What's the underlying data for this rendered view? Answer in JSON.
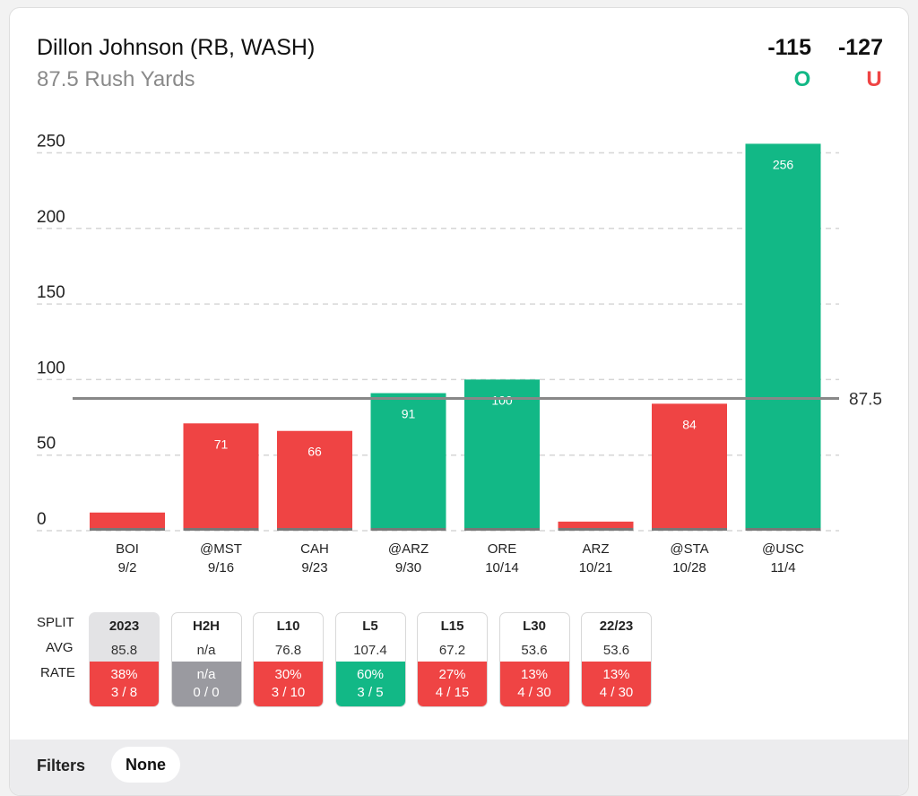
{
  "header": {
    "player": "Dillon Johnson (RB, WASH)",
    "prop": "87.5 Rush Yards",
    "over_odds": "-115",
    "under_odds": "-127",
    "over_label": "O",
    "under_label": "U"
  },
  "colors": {
    "over": "#12b886",
    "under": "#ef4444",
    "neutral": "#9a9aa0",
    "line": "#888888"
  },
  "chart_data": {
    "type": "bar",
    "title": "87.5 Rush Yards",
    "ylim": [
      0,
      260
    ],
    "yticks": [
      0,
      50,
      100,
      150,
      200,
      250
    ],
    "line_value": 87.5,
    "line_label": "87.5",
    "categories": [
      "BOI",
      "@MST",
      "CAH",
      "@ARZ",
      "ORE",
      "ARZ",
      "@STA",
      "@USC"
    ],
    "dates": [
      "9/2",
      "9/16",
      "9/23",
      "9/30",
      "10/14",
      "10/21",
      "10/28",
      "11/4"
    ],
    "values": [
      12,
      71,
      66,
      91,
      100,
      6,
      84,
      256
    ],
    "labels": [
      "",
      "71",
      "66",
      "91",
      "100",
      "",
      "84",
      "256"
    ],
    "results": [
      "under",
      "under",
      "under",
      "over",
      "over",
      "under",
      "under",
      "over"
    ]
  },
  "splits": {
    "row_labels": {
      "split": "SPLIT",
      "avg": "AVG",
      "rate": "RATE"
    },
    "items": [
      {
        "name": "2023",
        "avg": "85.8",
        "pct": "38%",
        "record": "3 / 8",
        "status": "under",
        "active": true
      },
      {
        "name": "H2H",
        "avg": "n/a",
        "pct": "n/a",
        "record": "0 / 0",
        "status": "neutral",
        "active": false
      },
      {
        "name": "L10",
        "avg": "76.8",
        "pct": "30%",
        "record": "3 / 10",
        "status": "under",
        "active": false
      },
      {
        "name": "L5",
        "avg": "107.4",
        "pct": "60%",
        "record": "3 / 5",
        "status": "over",
        "active": false
      },
      {
        "name": "L15",
        "avg": "67.2",
        "pct": "27%",
        "record": "4 / 15",
        "status": "under",
        "active": false
      },
      {
        "name": "L30",
        "avg": "53.6",
        "pct": "13%",
        "record": "4 / 30",
        "status": "under",
        "active": false
      },
      {
        "name": "22/23",
        "avg": "53.6",
        "pct": "13%",
        "record": "4 / 30",
        "status": "under",
        "active": false
      }
    ]
  },
  "filters": {
    "label": "Filters",
    "value": "None"
  }
}
